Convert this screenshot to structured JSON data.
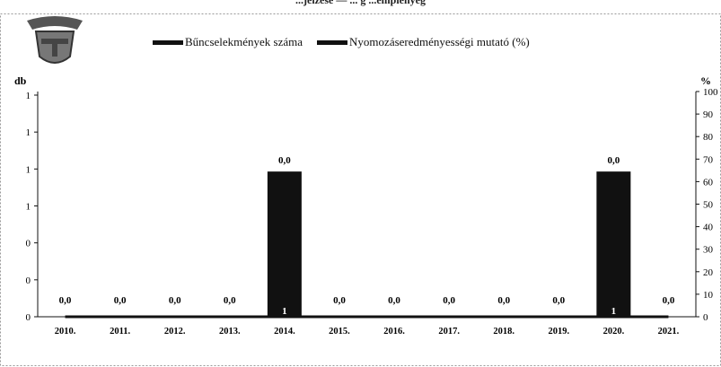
{
  "title": "...jelzése — ... g ...emplényég",
  "legend": [
    {
      "label": "Bűncselekmények száma"
    },
    {
      "label": "Nyomozáseredményességi mutató (%)"
    }
  ],
  "colors": {
    "bars": "#111111",
    "line": "#111111",
    "frame": "#999999"
  },
  "chart_data": {
    "type": "bar",
    "categories": [
      "2010.",
      "2011.",
      "2012.",
      "2013.",
      "2014.",
      "2015.",
      "2016.",
      "2017.",
      "2018.",
      "2019.",
      "2020.",
      "2021."
    ],
    "series": [
      {
        "name": "Bűncselekmények száma",
        "values": [
          0,
          0,
          0,
          0,
          1,
          0,
          0,
          0,
          0,
          0,
          1,
          0
        ],
        "bar_labels": [
          "",
          "",
          "",
          "",
          "1",
          "",
          "",
          "",
          "",
          "",
          "1",
          ""
        ]
      },
      {
        "name": "Nyomozáseredményességi mutató (%)",
        "type": "line",
        "values": [
          0,
          0,
          0,
          0,
          0,
          0,
          0,
          0,
          0,
          0,
          0,
          0
        ],
        "labels": [
          "0,0",
          "0,0",
          "0,0",
          "0,0",
          "0,0",
          "0,0",
          "0,0",
          "0,0",
          "0,0",
          "0,0",
          "0,0",
          "0,0"
        ]
      }
    ],
    "ylabel_left": "db",
    "ylabel_right": "%",
    "left_ticks": [
      "0",
      "0",
      "0",
      "1",
      "1",
      "1",
      "1"
    ],
    "right_ticks": [
      "0",
      "10",
      "20",
      "30",
      "40",
      "50",
      "60",
      "70",
      "80",
      "90",
      "100"
    ],
    "ylim_left": [
      0,
      1.2
    ],
    "ylim_right": [
      0,
      100
    ],
    "grid": false,
    "legend_position": "top"
  }
}
